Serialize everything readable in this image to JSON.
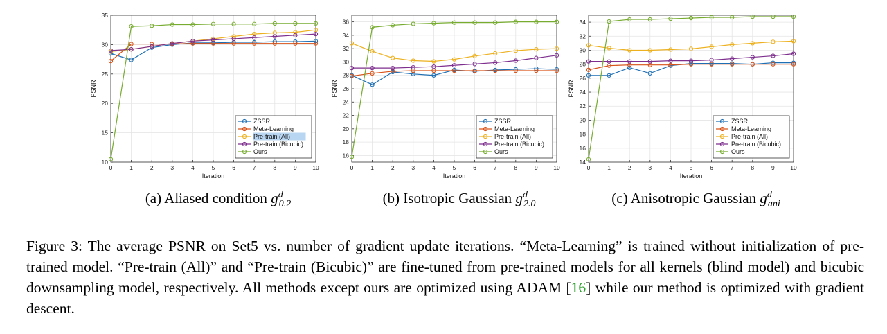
{
  "colors": {
    "ZSSR": "#1f6fb4",
    "Meta-Learning": "#d95319",
    "Pre-train (All)": "#edb120",
    "Pre-train (Bicubic)": "#7e2f8e",
    "Ours": "#77ac30",
    "highlight": "#b8d6f2"
  },
  "chart_data": [
    {
      "type": "line",
      "xlabel": "Iteration",
      "ylabel": "PSNR",
      "x": [
        0,
        1,
        2,
        3,
        4,
        5,
        6,
        7,
        8,
        9,
        10
      ],
      "xticks": [
        "0",
        "1",
        "2",
        "3",
        "4",
        "5",
        "6",
        "7",
        "8",
        "9",
        "10"
      ],
      "ylim": [
        10,
        35
      ],
      "yticks": [
        10,
        15,
        20,
        25,
        30,
        35
      ],
      "grid": true,
      "legend_placement": "bottom-right",
      "caption": {
        "prefix": "(a) Aliased condition ",
        "symbol": "g",
        "sup": "d",
        "sub": "0.2"
      },
      "series": [
        {
          "name": "ZSSR",
          "values": [
            28.5,
            27.4,
            29.5,
            30.0,
            30.3,
            30.3,
            30.4,
            30.4,
            30.5,
            30.5,
            30.6
          ]
        },
        {
          "name": "Meta-Learning",
          "values": [
            27.2,
            30.1,
            30.1,
            30.1,
            30.2,
            30.2,
            30.2,
            30.2,
            30.2,
            30.2,
            30.2
          ]
        },
        {
          "name": "Pre-train (All)",
          "values": [
            28.8,
            29.2,
            29.7,
            30.2,
            30.6,
            31.0,
            31.4,
            31.8,
            32.0,
            32.1,
            32.5
          ]
        },
        {
          "name": "Pre-train (Bicubic)",
          "values": [
            29.0,
            29.2,
            29.7,
            30.2,
            30.6,
            30.8,
            31.0,
            31.2,
            31.4,
            31.6,
            31.8
          ]
        },
        {
          "name": "Ours",
          "values": [
            10.5,
            33.1,
            33.2,
            33.4,
            33.4,
            33.5,
            33.5,
            33.5,
            33.6,
            33.6,
            33.6
          ]
        }
      ]
    },
    {
      "type": "line",
      "xlabel": "Iteration",
      "ylabel": "PSNR",
      "x": [
        0,
        1,
        2,
        3,
        4,
        5,
        6,
        7,
        8,
        9,
        10
      ],
      "xticks": [
        "0",
        "1",
        "2",
        "3",
        "4",
        "5",
        "6",
        "7",
        "8",
        "9",
        "10"
      ],
      "ylim": [
        15,
        37
      ],
      "yticks": [
        16,
        18,
        20,
        22,
        24,
        26,
        28,
        30,
        32,
        34,
        36
      ],
      "grid": true,
      "legend_placement": "bottom-right",
      "caption": {
        "prefix": "(b) Isotropic Gaussian ",
        "symbol": "g",
        "sup": "d",
        "sub": "2.0"
      },
      "series": [
        {
          "name": "ZSSR",
          "values": [
            28.0,
            26.6,
            28.5,
            28.2,
            28.0,
            28.8,
            28.6,
            28.8,
            28.9,
            29.0,
            28.9
          ]
        },
        {
          "name": "Meta-Learning",
          "values": [
            27.9,
            28.3,
            28.6,
            28.7,
            28.7,
            28.7,
            28.7,
            28.7,
            28.7,
            28.7,
            28.7
          ]
        },
        {
          "name": "Pre-train (All)",
          "values": [
            32.8,
            31.6,
            30.6,
            30.2,
            30.1,
            30.4,
            30.9,
            31.3,
            31.7,
            31.9,
            32.0
          ]
        },
        {
          "name": "Pre-train (Bicubic)",
          "values": [
            29.1,
            29.1,
            29.1,
            29.2,
            29.3,
            29.5,
            29.7,
            29.9,
            30.2,
            30.6,
            31.0
          ]
        },
        {
          "name": "Ours",
          "values": [
            15.8,
            35.2,
            35.5,
            35.7,
            35.8,
            35.9,
            35.9,
            35.9,
            36.0,
            36.0,
            36.0
          ]
        }
      ]
    },
    {
      "type": "line",
      "xlabel": "Iteration",
      "ylabel": "PSNR",
      "x": [
        0,
        1,
        2,
        3,
        4,
        5,
        6,
        7,
        8,
        9,
        10
      ],
      "xticks": [
        "0",
        "1",
        "2",
        "3",
        "4",
        "5",
        "6",
        "7",
        "8",
        "9",
        "10"
      ],
      "ylim": [
        14,
        35
      ],
      "yticks": [
        14,
        16,
        18,
        20,
        22,
        24,
        26,
        28,
        30,
        32,
        34
      ],
      "grid": true,
      "legend_placement": "bottom-right",
      "caption": {
        "prefix": "(c) Anisotropic Gaussian ",
        "symbol": "g",
        "sup": "d",
        "sub": "ani"
      },
      "series": [
        {
          "name": "ZSSR",
          "values": [
            26.4,
            26.4,
            27.5,
            26.7,
            27.8,
            28.1,
            28.1,
            28.1,
            28.0,
            28.2,
            28.2
          ]
        },
        {
          "name": "Meta-Learning",
          "values": [
            27.2,
            27.8,
            27.9,
            27.9,
            27.9,
            28.0,
            28.0,
            28.0,
            28.0,
            28.0,
            28.0
          ]
        },
        {
          "name": "Pre-train (All)",
          "values": [
            30.7,
            30.3,
            30.0,
            30.0,
            30.1,
            30.2,
            30.5,
            30.8,
            31.0,
            31.2,
            31.3
          ]
        },
        {
          "name": "Pre-train (Bicubic)",
          "values": [
            28.4,
            28.4,
            28.4,
            28.4,
            28.5,
            28.5,
            28.6,
            28.8,
            29.0,
            29.2,
            29.5
          ]
        },
        {
          "name": "Ours",
          "values": [
            14.4,
            34.1,
            34.4,
            34.4,
            34.5,
            34.6,
            34.7,
            34.7,
            34.8,
            34.8,
            34.8
          ]
        }
      ]
    }
  ],
  "highlighted_legend": {
    "chart": 0,
    "series": "Pre-train (All)"
  },
  "figure_caption": {
    "parts": [
      "Figure 3: The average PSNR on Set5 vs. number of gradient update iterations. “Meta-Learning” is trained without initialization of pre-trained model. “Pre-train (All)” and “Pre-train (Bicubic)” are fine-tuned from pre-trained models for all kernels (blind model) and bicubic downsampling model, respectively. All methods except ours are optimized using ADAM [",
      "16",
      "] while our method is optimized with gradient descent."
    ]
  }
}
